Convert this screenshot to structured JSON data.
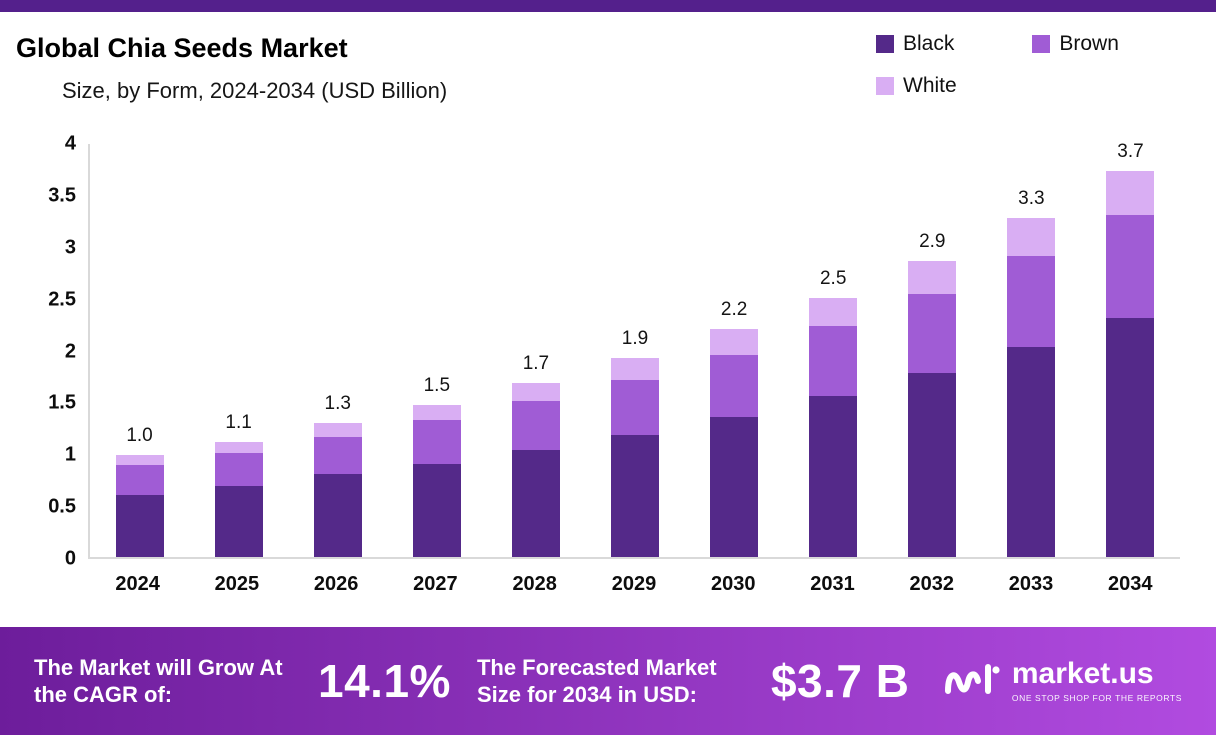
{
  "header": {
    "title": "Global Chia Seeds Market",
    "subtitle": "Size, by Form, 2024-2034 (USD Billion)"
  },
  "chart_data": {
    "type": "bar",
    "stacked": true,
    "title": "Global Chia Seeds Market",
    "subtitle": "Size, by Form, 2024-2034 (USD Billion)",
    "unit": "USD Billion",
    "categories": [
      "2024",
      "2025",
      "2026",
      "2027",
      "2028",
      "2029",
      "2030",
      "2031",
      "2032",
      "2033",
      "2034"
    ],
    "series": [
      {
        "name": "Black",
        "color": "#542989",
        "values": [
          0.6,
          0.68,
          0.8,
          0.9,
          1.03,
          1.18,
          1.35,
          1.55,
          1.77,
          2.02,
          2.3
        ]
      },
      {
        "name": "Brown",
        "color": "#a05cd5",
        "values": [
          0.29,
          0.32,
          0.36,
          0.42,
          0.47,
          0.53,
          0.6,
          0.68,
          0.77,
          0.88,
          1.0
        ]
      },
      {
        "name": "White",
        "color": "#d9aef3",
        "values": [
          0.09,
          0.11,
          0.13,
          0.15,
          0.18,
          0.21,
          0.25,
          0.27,
          0.31,
          0.37,
          0.42
        ]
      }
    ],
    "totals": [
      "1.0",
      "1.1",
      "1.3",
      "1.5",
      "1.7",
      "1.9",
      "2.2",
      "2.5",
      "2.9",
      "3.3",
      "3.7"
    ],
    "ylim": [
      0,
      4
    ],
    "yticks": [
      4,
      3.5,
      3,
      2.5,
      2,
      1.5,
      1,
      0.5,
      0
    ],
    "grid": false,
    "legend_position": "top-right"
  },
  "footer": {
    "cagr_label": "The Market will Grow At the CAGR of:",
    "cagr_value": "14.1%",
    "forecast_label": "The Forecasted Market Size for 2034 in USD:",
    "forecast_value": "$3.7 B",
    "brand": "market.us",
    "tagline": "ONE STOP SHOP FOR THE REPORTS"
  },
  "colors": {
    "top_strip": "#54208c",
    "footer_gradient_left": "#6d1d9b",
    "footer_gradient_right": "#b14be0",
    "bar_black": "#542989",
    "bar_brown": "#a05cd5",
    "bar_white": "#d9aef3",
    "axis_line": "#d9d9d9"
  }
}
